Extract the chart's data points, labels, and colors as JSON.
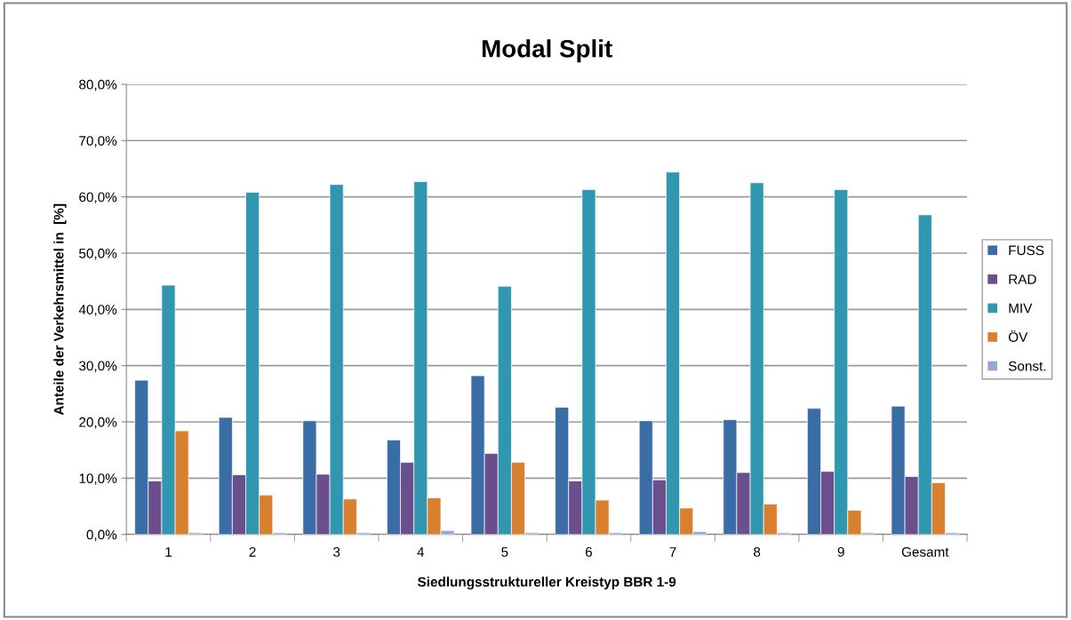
{
  "chart_data": {
    "type": "bar",
    "title": "Modal Split",
    "xlabel": "Siedlungsstruktureller Kreistyp BBR 1-9",
    "ylabel": "Anteile der Verkehrsmittel in  [%]",
    "categories": [
      "1",
      "2",
      "3",
      "4",
      "5",
      "6",
      "7",
      "8",
      "9",
      "Gesamt"
    ],
    "series": [
      {
        "name": "FUSS",
        "color": "#3a6ca5",
        "values": [
          27.4,
          20.8,
          20.2,
          16.8,
          28.2,
          22.6,
          20.2,
          20.4,
          22.4,
          22.8
        ]
      },
      {
        "name": "RAD",
        "color": "#6b4f8c",
        "values": [
          9.5,
          10.6,
          10.7,
          12.8,
          14.4,
          9.5,
          9.7,
          11.0,
          11.2,
          10.3
        ]
      },
      {
        "name": "MIV",
        "color": "#3196b0",
        "values": [
          44.3,
          60.8,
          62.2,
          62.7,
          44.1,
          61.3,
          64.4,
          62.5,
          61.3,
          56.8
        ]
      },
      {
        "name": "ÖV",
        "color": "#d98030",
        "values": [
          18.4,
          7.0,
          6.3,
          6.5,
          12.8,
          6.1,
          4.7,
          5.4,
          4.3,
          9.2
        ]
      },
      {
        "name": "Sonst.",
        "color": "#93a9d2",
        "values": [
          0.3,
          0.3,
          0.3,
          0.7,
          0.3,
          0.3,
          0.5,
          0.3,
          0.3,
          0.3
        ]
      }
    ],
    "ylim": [
      0,
      80
    ],
    "yticks": [
      {
        "value": 0,
        "label": "0,0%"
      },
      {
        "value": 10,
        "label": "10,0%"
      },
      {
        "value": 20,
        "label": "20,0%"
      },
      {
        "value": 30,
        "label": "30,0%"
      },
      {
        "value": 40,
        "label": "40,0%"
      },
      {
        "value": 50,
        "label": "50,0%"
      },
      {
        "value": 60,
        "label": "60,0%"
      },
      {
        "value": 70,
        "label": "70,0%"
      },
      {
        "value": 80,
        "label": "80,0%"
      }
    ],
    "grid": "y",
    "legend": "right"
  }
}
